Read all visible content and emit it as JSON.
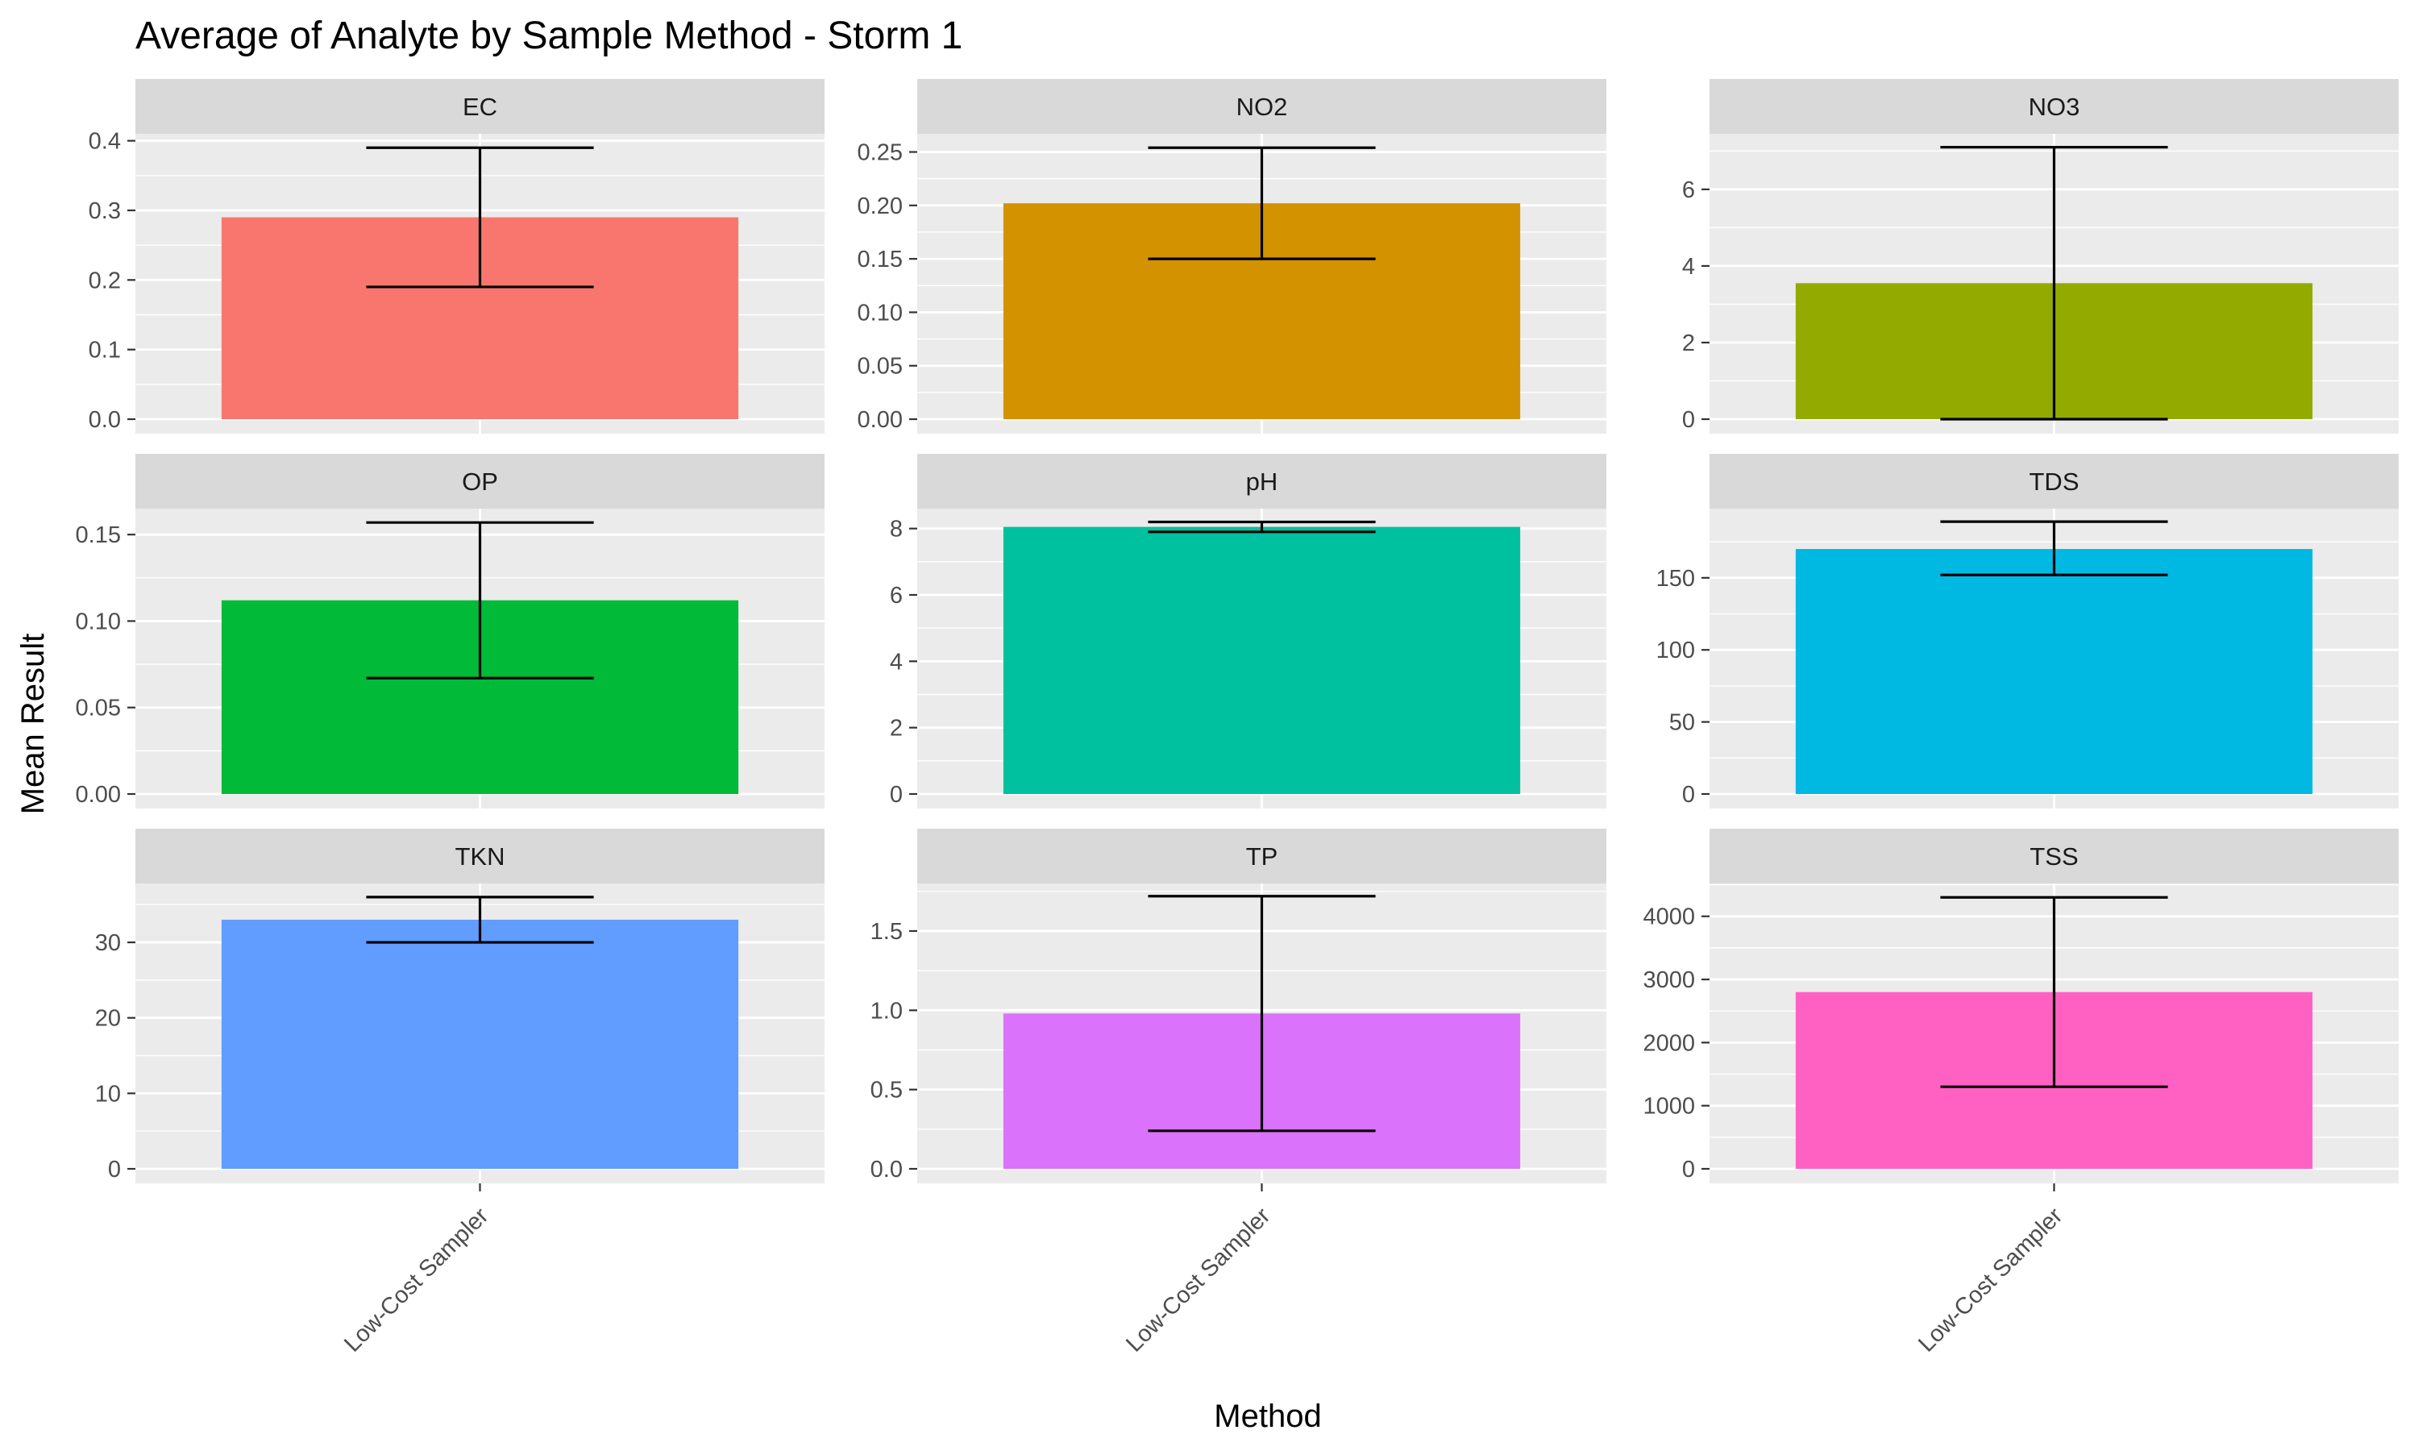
{
  "chart_data": {
    "type": "bar",
    "title": "Average of Analyte by Sample Method - Storm 1",
    "xlabel": "Method",
    "ylabel": "Mean Result",
    "grid": true,
    "legend": "none",
    "category": "Low-Cost Sampler",
    "facets": [
      {
        "label": "EC",
        "value": 0.29,
        "err_low": 0.19,
        "err_high": 0.39,
        "ylim": [
          0,
          0.41
        ],
        "ticks": [
          0.0,
          0.1,
          0.2,
          0.3,
          0.4
        ],
        "tick_labels": [
          "0.0",
          "0.1",
          "0.2",
          "0.3",
          "0.4"
        ],
        "color": "#F8766D"
      },
      {
        "label": "NO2",
        "value": 0.202,
        "err_low": 0.15,
        "err_high": 0.254,
        "ylim": [
          0,
          0.267
        ],
        "ticks": [
          0.0,
          0.05,
          0.1,
          0.15,
          0.2,
          0.25
        ],
        "tick_labels": [
          "0.00",
          "0.05",
          "0.10",
          "0.15",
          "0.20",
          "0.25"
        ],
        "color": "#D39200"
      },
      {
        "label": "NO3",
        "value": 3.55,
        "err_low": 0.0,
        "err_high": 7.1,
        "ylim": [
          0,
          7.45
        ],
        "ticks": [
          0,
          2,
          4,
          6
        ],
        "tick_labels": [
          "0",
          "2",
          "4",
          "6"
        ],
        "color": "#93AA00"
      },
      {
        "label": "OP",
        "value": 0.112,
        "err_low": 0.067,
        "err_high": 0.157,
        "ylim": [
          0,
          0.165
        ],
        "ticks": [
          0.0,
          0.05,
          0.1,
          0.15
        ],
        "tick_labels": [
          "0.00",
          "0.05",
          "0.10",
          "0.15"
        ],
        "color": "#00BA38"
      },
      {
        "label": "pH",
        "value": 8.05,
        "err_low": 7.9,
        "err_high": 8.2,
        "ylim": [
          0,
          8.6
        ],
        "ticks": [
          0,
          2,
          4,
          6,
          8
        ],
        "tick_labels": [
          "0",
          "2",
          "4",
          "6",
          "8"
        ],
        "color": "#00C19F"
      },
      {
        "label": "TDS",
        "value": 170,
        "err_low": 152,
        "err_high": 189,
        "ylim": [
          0,
          198
        ],
        "ticks": [
          0,
          50,
          100,
          150
        ],
        "tick_labels": [
          "0",
          "50",
          "100",
          "150"
        ],
        "color": "#00B9E3"
      },
      {
        "label": "TKN",
        "value": 33,
        "err_low": 30,
        "err_high": 36,
        "ylim": [
          0,
          37.8
        ],
        "ticks": [
          0,
          10,
          20,
          30
        ],
        "tick_labels": [
          "0",
          "10",
          "20",
          "30"
        ],
        "color": "#619CFF"
      },
      {
        "label": "TP",
        "value": 0.98,
        "err_low": 0.24,
        "err_high": 1.72,
        "ylim": [
          0,
          1.8
        ],
        "ticks": [
          0.0,
          0.5,
          1.0,
          1.5
        ],
        "tick_labels": [
          "0.0",
          "0.5",
          "1.0",
          "1.5"
        ],
        "color": "#DB72FB"
      },
      {
        "label": "TSS",
        "value": 2800,
        "err_low": 1300,
        "err_high": 4300,
        "ylim": [
          0,
          4520
        ],
        "ticks": [
          0,
          1000,
          2000,
          3000,
          4000
        ],
        "tick_labels": [
          "0",
          "1000",
          "2000",
          "3000",
          "4000"
        ],
        "color": "#FF61C3"
      }
    ]
  }
}
